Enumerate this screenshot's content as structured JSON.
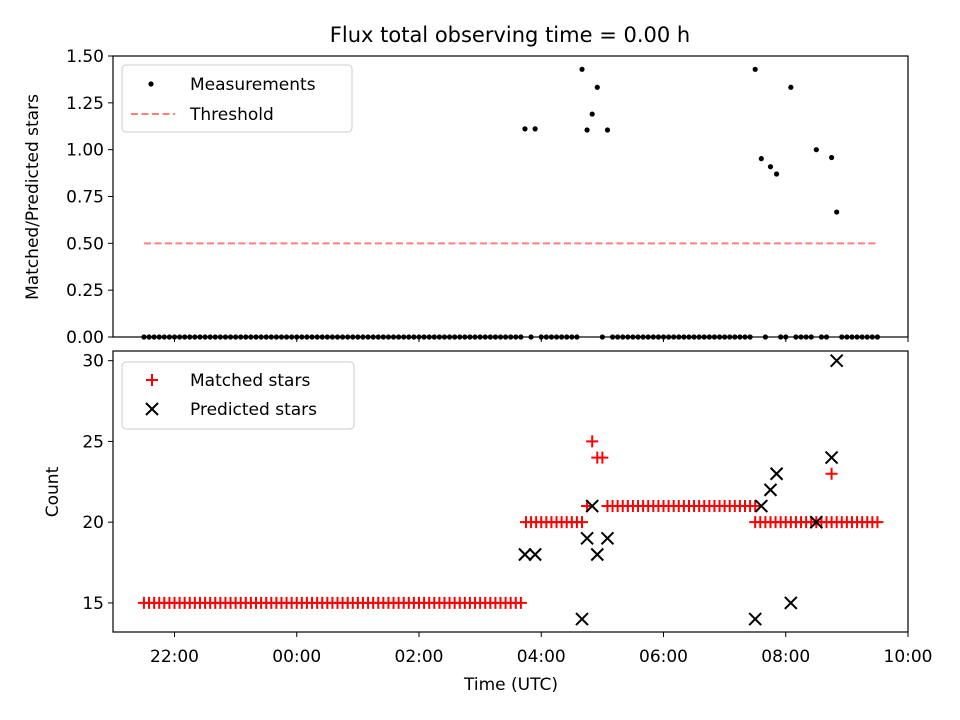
{
  "chart_data": [
    {
      "type": "scatter",
      "title": "Flux total observing time = 0.00 h",
      "xlabel": "",
      "ylabel": "Matched/Predicted stars",
      "ylim": [
        0,
        1.5
      ],
      "xlim": [
        "21:15",
        "10:00"
      ],
      "yticks": [
        "0.00",
        "0.25",
        "0.50",
        "0.75",
        "1.00",
        "1.25",
        "1.50"
      ],
      "legend_position": "top-left",
      "series": [
        {
          "name": "Measurements",
          "marker": "dot",
          "color": "#000000",
          "points": [
            [
              "03:44",
              1.111
            ],
            [
              "03:54",
              1.111
            ],
            [
              "04:40",
              1.429
            ],
            [
              "04:45",
              1.105
            ],
            [
              "04:50",
              1.19
            ],
            [
              "04:55",
              1.333
            ],
            [
              "05:05",
              1.105
            ],
            [
              "07:30",
              1.429
            ],
            [
              "07:36",
              0.952
            ],
            [
              "07:45",
              0.909
            ],
            [
              "07:51",
              0.87
            ],
            [
              "08:05",
              1.333
            ],
            [
              "08:30",
              1.0
            ],
            [
              "08:45",
              0.958
            ],
            [
              "08:50",
              0.667
            ]
          ],
          "zero_points_range": [
            "21:30",
            "09:30"
          ]
        },
        {
          "name": "Threshold",
          "style": "dashed",
          "color": "#ff7f7f",
          "y": 0.5,
          "x_range": [
            "21:30",
            "09:30"
          ]
        }
      ]
    },
    {
      "type": "scatter",
      "title": "",
      "xlabel": "Time (UTC)",
      "ylabel": "Count",
      "ylim": [
        13.2,
        30.6
      ],
      "xticks": [
        "22:00",
        "00:00",
        "02:00",
        "04:00",
        "06:00",
        "08:00",
        "10:00"
      ],
      "yticks": [
        "15",
        "20",
        "25",
        "30"
      ],
      "legend_position": "top-left",
      "series": [
        {
          "name": "Matched stars",
          "marker": "plus",
          "color": "#ff0000",
          "runs": [
            {
              "from": "21:30",
              "to": "03:40",
              "y": 15
            },
            {
              "from": "03:45",
              "to": "04:40",
              "y": 20
            },
            {
              "from": "05:05",
              "to": "07:30",
              "y": 21
            },
            {
              "from": "07:30",
              "to": "09:30",
              "y": 20
            }
          ],
          "points": [
            [
              "04:45",
              21
            ],
            [
              "04:50",
              25
            ],
            [
              "04:55",
              24
            ],
            [
              "05:00",
              24
            ],
            [
              "08:45",
              23
            ]
          ]
        },
        {
          "name": "Predicted stars",
          "marker": "x",
          "color": "#000000",
          "points": [
            [
              "03:44",
              18
            ],
            [
              "03:54",
              18
            ],
            [
              "04:40",
              14
            ],
            [
              "04:45",
              19
            ],
            [
              "04:50",
              21
            ],
            [
              "04:55",
              18
            ],
            [
              "05:05",
              19
            ],
            [
              "07:30",
              14
            ],
            [
              "07:36",
              21
            ],
            [
              "07:45",
              22
            ],
            [
              "07:51",
              23
            ],
            [
              "08:05",
              15
            ],
            [
              "08:30",
              20
            ],
            [
              "08:45",
              24
            ],
            [
              "08:50",
              30
            ]
          ]
        }
      ]
    }
  ]
}
